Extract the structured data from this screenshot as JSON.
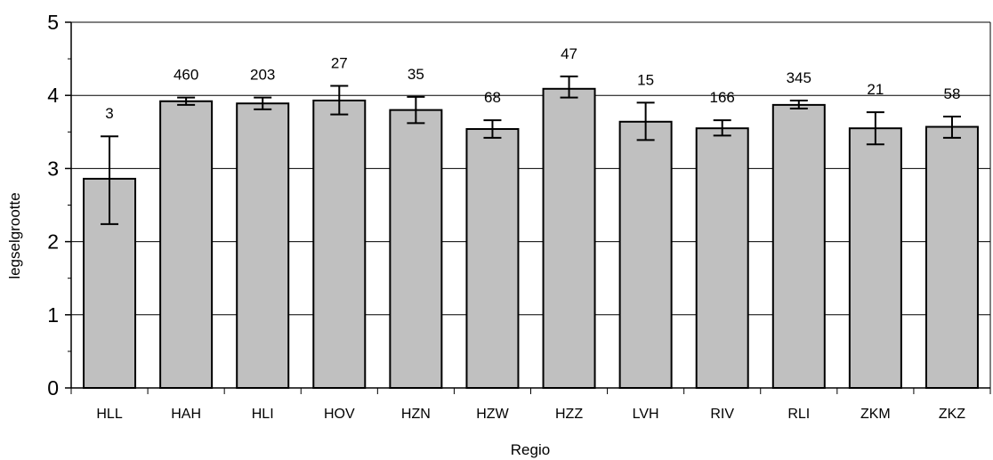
{
  "chart_data": {
    "type": "bar",
    "xlabel": "Regio",
    "ylabel": "legselgrootte",
    "ylim": [
      0,
      5
    ],
    "yticks": [
      0,
      1,
      2,
      3,
      4,
      5
    ],
    "grid": true,
    "legend": "none",
    "categories": [
      "HLL",
      "HAH",
      "HLI",
      "HOV",
      "HZN",
      "HZW",
      "HZZ",
      "LVH",
      "RIV",
      "RLI",
      "ZKM",
      "ZKZ"
    ],
    "values": [
      2.86,
      3.92,
      3.89,
      3.93,
      3.8,
      3.54,
      4.09,
      3.64,
      3.55,
      3.87,
      3.55,
      3.57
    ],
    "error_low": [
      2.24,
      3.87,
      3.81,
      3.74,
      3.62,
      3.42,
      3.97,
      3.39,
      3.45,
      3.82,
      3.33,
      3.42
    ],
    "error_high": [
      3.44,
      3.97,
      3.97,
      4.13,
      3.98,
      3.66,
      4.26,
      3.9,
      3.66,
      3.93,
      3.77,
      3.71
    ],
    "data_labels": [
      "3",
      "460",
      "203",
      "27",
      "35",
      "68",
      "47",
      "15",
      "166",
      "345",
      "21",
      "58"
    ],
    "bar_color": "#c0c0c0",
    "bar_edge_color": "#000000"
  }
}
